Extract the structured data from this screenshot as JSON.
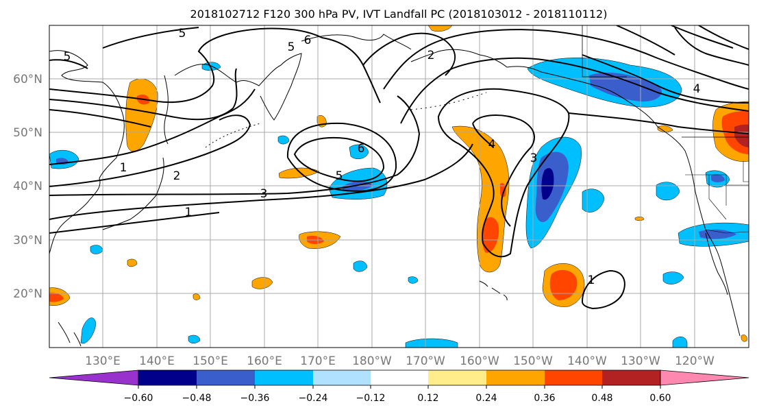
{
  "title": "2018102712 F120 300 hPa PV, IVT Landfall PC (2018103012 - 2018110112)",
  "map": {
    "lat_labels": [
      "60°N",
      "50°N",
      "40°N",
      "30°N",
      "20°N"
    ],
    "lat_values": [
      60,
      50,
      40,
      30,
      20
    ],
    "lon_labels": [
      "130°E",
      "140°E",
      "150°E",
      "160°E",
      "170°E",
      "180°W",
      "170°W",
      "160°W",
      "150°W",
      "140°W",
      "130°W",
      "120°W"
    ],
    "lon_values": [
      130,
      140,
      150,
      160,
      170,
      180,
      190,
      200,
      210,
      220,
      230,
      240
    ],
    "lon_range_east_deg": [
      122,
      252
    ],
    "lat_range": [
      10,
      70
    ],
    "grid": true
  },
  "contour_labels": [
    "5",
    "5",
    "6",
    "2",
    "5",
    "4",
    "6",
    "5",
    "3",
    "1",
    "2",
    "1",
    "4",
    "3",
    "1"
  ],
  "colorbar": {
    "ticks": [
      "−0.60",
      "−0.48",
      "−0.36",
      "−0.24",
      "−0.12",
      "0.12",
      "0.24",
      "0.36",
      "0.48",
      "0.60"
    ],
    "colors": [
      "#9932cc",
      "#00008b",
      "#3a5fcd",
      "#00bfff",
      "#b0e2ff",
      "#ffffff",
      "#ffec8b",
      "#ffa500",
      "#ff4500",
      "#b22222",
      "#ff88b0"
    ]
  },
  "colors": {
    "contour": "#000000",
    "grid": "#a9a9a9",
    "coast": "#000000",
    "axis_label": "#777777"
  }
}
